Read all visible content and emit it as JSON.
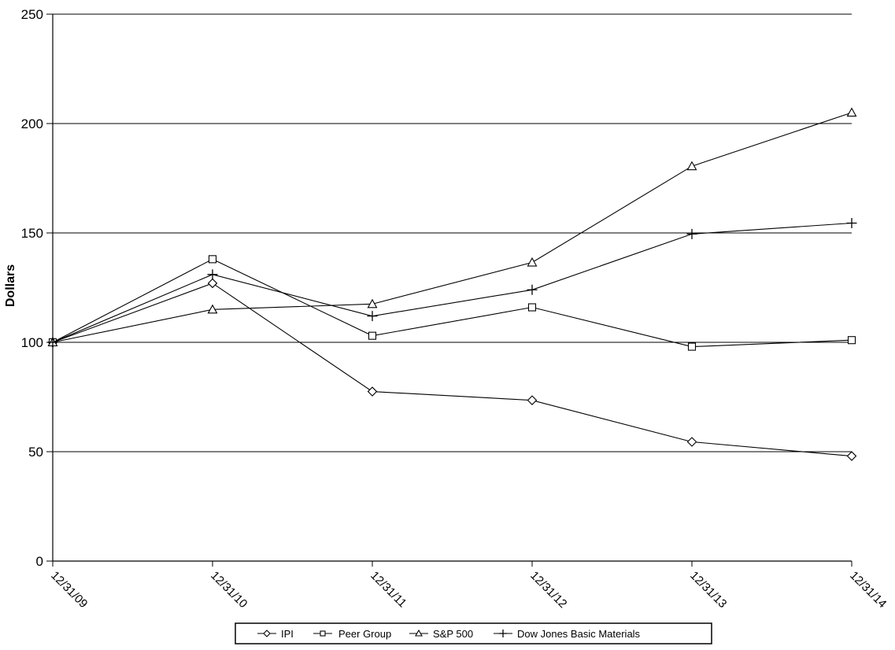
{
  "chart_data": {
    "type": "line",
    "title": "",
    "ylabel": "Dollars",
    "xlabel": "",
    "x_labels": [
      "12/31/09",
      "12/31/10",
      "12/31/11",
      "12/31/12",
      "12/31/13",
      "12/31/14"
    ],
    "ylim": [
      0,
      250
    ],
    "yticks": [
      0,
      50,
      100,
      150,
      200,
      250
    ],
    "grid": true,
    "legend_position": "bottom",
    "series": [
      {
        "name": "IPI",
        "marker": "diamond",
        "values": [
          100,
          127,
          77.5,
          73.5,
          54.5,
          48
        ]
      },
      {
        "name": "Peer Group",
        "marker": "square",
        "values": [
          100,
          138,
          103,
          116,
          98,
          101
        ]
      },
      {
        "name": "S&P 500",
        "marker": "triangle",
        "values": [
          100,
          115,
          117.5,
          136.5,
          180.5,
          205
        ]
      },
      {
        "name": "Dow Jones Basic Materials",
        "marker": "plus",
        "values": [
          100,
          131,
          112,
          124,
          149.5,
          154.5
        ]
      }
    ],
    "colors": {
      "line": "#000000",
      "marker_fill": "#ffffff",
      "text": "#000000",
      "background": "#ffffff",
      "grid": "#000000"
    }
  }
}
